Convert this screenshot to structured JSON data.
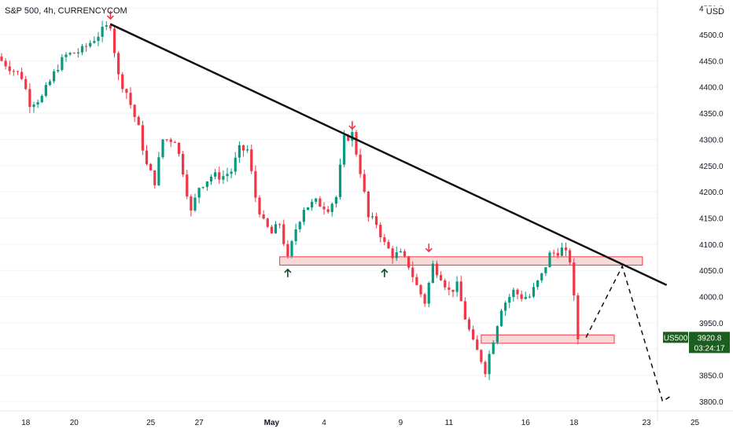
{
  "header": {
    "symbol": "S&P 500, 4h, CURRENCYCOM",
    "currency": "USD"
  },
  "price_tag": {
    "symbol": "US500",
    "price": "3920.8",
    "countdown": "03:24:17"
  },
  "colors": {
    "up": "#089981",
    "down": "#F23645",
    "trendline": "#111111",
    "zone_fill": "#F7CBCB",
    "zone_stroke": "#F23645",
    "arrow_up": "#0b4d2a",
    "arrow_down": "#F23645",
    "tag_bg": "#1b5e20"
  },
  "chart_data": {
    "type": "candlestick",
    "ylim": [
      3782,
      4560
    ],
    "y_ticks": [
      3800,
      3850,
      3900,
      3950,
      4000,
      4050,
      4100,
      4150,
      4200,
      4250,
      4300,
      4350,
      4400,
      4450,
      4500,
      4550
    ],
    "y_tick_labels": [
      "3800.0",
      "3850.0",
      "3900.0",
      "3950.0",
      "4000.0",
      "4050.0",
      "4100.0",
      "4150.0",
      "4200.0",
      "4250.0",
      "4300.0",
      "4350.0",
      "4400.0",
      "4450.0",
      "4500.0",
      "4550.0"
    ],
    "x_labels": [
      {
        "label": "18",
        "bar": 6,
        "bold": false
      },
      {
        "label": "20",
        "bar": 18,
        "bold": false
      },
      {
        "label": "25",
        "bar": 37,
        "bold": false
      },
      {
        "label": "27",
        "bar": 49,
        "bold": false
      },
      {
        "label": "May",
        "bar": 67,
        "bold": true
      },
      {
        "label": "4",
        "bar": 80,
        "bold": false
      },
      {
        "label": "9",
        "bar": 99,
        "bold": false
      },
      {
        "label": "11",
        "bar": 111,
        "bold": false
      },
      {
        "label": "16",
        "bar": 130,
        "bold": false
      },
      {
        "label": "18",
        "bar": 142,
        "bold": false
      },
      {
        "label": "23",
        "bar": 160,
        "bold": false
      },
      {
        "label": "25",
        "bar": 172,
        "bold": false
      }
    ],
    "close_path": [
      [
        0,
        4450
      ],
      [
        5,
        4420
      ],
      [
        7,
        4370
      ],
      [
        10,
        4380
      ],
      [
        14,
        4440
      ],
      [
        16,
        4460
      ],
      [
        20,
        4470
      ],
      [
        24,
        4500
      ],
      [
        27,
        4520
      ],
      [
        29,
        4420
      ],
      [
        31,
        4390
      ],
      [
        34,
        4320
      ],
      [
        36,
        4250
      ],
      [
        38,
        4220
      ],
      [
        40,
        4300
      ],
      [
        43,
        4300
      ],
      [
        45,
        4240
      ],
      [
        47,
        4160
      ],
      [
        49,
        4210
      ],
      [
        52,
        4230
      ],
      [
        55,
        4230
      ],
      [
        57,
        4240
      ],
      [
        59,
        4280
      ],
      [
        61,
        4280
      ],
      [
        63,
        4190
      ],
      [
        65,
        4140
      ],
      [
        67,
        4120
      ],
      [
        69,
        4140
      ],
      [
        71,
        4070
      ],
      [
        73,
        4130
      ],
      [
        75,
        4170
      ],
      [
        78,
        4180
      ],
      [
        81,
        4170
      ],
      [
        83,
        4190
      ],
      [
        85,
        4300
      ],
      [
        87,
        4310
      ],
      [
        89,
        4240
      ],
      [
        91,
        4150
      ],
      [
        93,
        4140
      ],
      [
        95,
        4100
      ],
      [
        97,
        4080
      ],
      [
        99,
        4080
      ],
      [
        101,
        4060
      ],
      [
        103,
        4020
      ],
      [
        105,
        3990
      ],
      [
        107,
        4060
      ],
      [
        109,
        4040
      ],
      [
        111,
        4010
      ],
      [
        113,
        4020
      ],
      [
        115,
        3960
      ],
      [
        117,
        3910
      ],
      [
        119,
        3880
      ],
      [
        120,
        3860
      ],
      [
        122,
        3920
      ],
      [
        124,
        3980
      ],
      [
        127,
        4010
      ],
      [
        129,
        4000
      ],
      [
        131,
        4000
      ],
      [
        134,
        4040
      ],
      [
        136,
        4080
      ],
      [
        139,
        4090
      ],
      [
        141,
        4070
      ],
      [
        143,
        3920
      ]
    ],
    "last_bar": 143,
    "trendline": {
      "points": [
        [
          27,
          4520
        ],
        [
          165,
          4022
        ]
      ]
    },
    "zones": [
      {
        "x0": 69,
        "x1": 159,
        "y0": 4060,
        "y1": 4076
      },
      {
        "x0": 119,
        "x1": 152,
        "y0": 3911,
        "y1": 3927
      }
    ],
    "projection": {
      "points": [
        [
          145,
          3922
        ],
        [
          154,
          4058
        ],
        [
          164,
          3800
        ],
        [
          166,
          3810
        ]
      ]
    },
    "arrows_up": [
      {
        "bar": 71,
        "price": 4052
      },
      {
        "bar": 95,
        "price": 4052
      }
    ],
    "arrows_down": [
      {
        "bar": 27,
        "price": 4530
      },
      {
        "bar": 87,
        "price": 4320
      },
      {
        "bar": 106,
        "price": 4086
      }
    ]
  }
}
